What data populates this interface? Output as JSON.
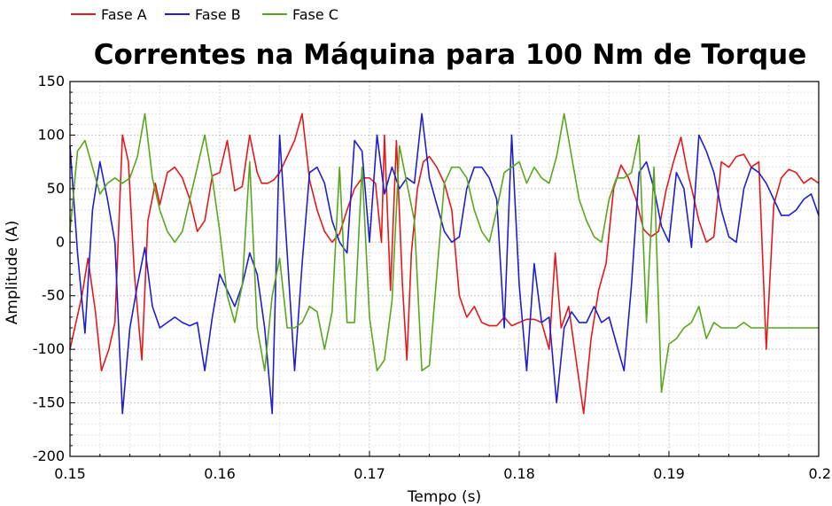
{
  "chart_data": {
    "type": "line",
    "title": "Correntes na Máquina para 100 Nm de Torque",
    "xlabel": "Tempo (s)",
    "ylabel": "Amplitude (A)",
    "xlim": [
      0.15,
      0.2
    ],
    "ylim": [
      -200,
      150
    ],
    "xticks": [
      0.15,
      0.16,
      0.17,
      0.18,
      0.19,
      0.2
    ],
    "xtick_labels": [
      "0.15",
      "0.16",
      "0.17",
      "0.18",
      "0.19",
      "0.2"
    ],
    "yticks": [
      150,
      100,
      50,
      0,
      -50,
      -100,
      -150,
      -200
    ],
    "ytick_labels": [
      "150",
      "100",
      "50",
      "0",
      "-50",
      "-100",
      "-150",
      "-200"
    ],
    "grid": true,
    "legend_position": "top-left",
    "series": [
      {
        "name": "Fase A",
        "color": "#e31a1c",
        "x": [
          0.15,
          0.1508,
          0.1512,
          0.1517,
          0.1521,
          0.1526,
          0.153,
          0.1535,
          0.1539,
          0.1543,
          0.1548,
          0.1552,
          0.1557,
          0.156,
          0.1565,
          0.157,
          0.1575,
          0.158,
          0.1585,
          0.159,
          0.1595,
          0.16,
          0.1605,
          0.161,
          0.1615,
          0.162,
          0.1625,
          0.1628,
          0.1632,
          0.1636,
          0.164,
          0.1645,
          0.165,
          0.1655,
          0.166,
          0.1665,
          0.167,
          0.1675,
          0.168,
          0.1685,
          0.169,
          0.1695,
          0.17,
          0.1704,
          0.1708,
          0.171,
          0.1714,
          0.1718,
          0.1722,
          0.1725,
          0.1728,
          0.1732,
          0.1736,
          0.174,
          0.1745,
          0.175,
          0.1755,
          0.176,
          0.1765,
          0.177,
          0.1775,
          0.178,
          0.1785,
          0.179,
          0.1795,
          0.18,
          0.1805,
          0.181,
          0.1815,
          0.182,
          0.1824,
          0.1828,
          0.1833,
          0.1838,
          0.1843,
          0.1848,
          0.1853,
          0.1858,
          0.1863,
          0.1868,
          0.1873,
          0.1878,
          0.1883,
          0.1888,
          0.1893,
          0.1898,
          0.1903,
          0.1908,
          0.1912,
          0.1916,
          0.192,
          0.1925,
          0.193,
          0.1935,
          0.194,
          0.1945,
          0.195,
          0.1955,
          0.196,
          0.1965,
          0.197,
          0.1975,
          0.198,
          0.1985,
          0.199,
          0.1995,
          0.2
        ],
        "values": [
          -100,
          -50,
          -15,
          -65,
          -120,
          -100,
          -75,
          100,
          75,
          -30,
          -110,
          20,
          55,
          35,
          65,
          70,
          60,
          40,
          10,
          20,
          62,
          65,
          95,
          48,
          52,
          100,
          65,
          55,
          55,
          58,
          65,
          80,
          95,
          120,
          58,
          30,
          10,
          0,
          8,
          30,
          50,
          60,
          60,
          55,
          0,
          100,
          -45,
          95,
          -40,
          -110,
          -10,
          50,
          75,
          80,
          70,
          55,
          30,
          -50,
          -70,
          -60,
          -75,
          -78,
          -78,
          -70,
          -78,
          -75,
          -72,
          -72,
          -75,
          -100,
          -10,
          -80,
          -60,
          -110,
          -160,
          -90,
          -45,
          -20,
          50,
          72,
          60,
          40,
          12,
          5,
          10,
          48,
          75,
          98,
          68,
          45,
          20,
          0,
          5,
          75,
          70,
          80,
          82,
          70,
          75,
          -100,
          35,
          60,
          68,
          65,
          55,
          60,
          55
        ]
      },
      {
        "name": "Fase B",
        "color": "#1f1fd0",
        "x": [
          0.15,
          0.1505,
          0.151,
          0.1515,
          0.152,
          0.1525,
          0.153,
          0.1535,
          0.154,
          0.1545,
          0.155,
          0.1555,
          0.156,
          0.1565,
          0.157,
          0.1575,
          0.158,
          0.1585,
          0.159,
          0.1595,
          0.16,
          0.1605,
          0.161,
          0.1615,
          0.162,
          0.1625,
          0.163,
          0.1635,
          0.164,
          0.1645,
          0.165,
          0.1655,
          0.166,
          0.1665,
          0.167,
          0.1675,
          0.168,
          0.1685,
          0.169,
          0.1695,
          0.17,
          0.1705,
          0.171,
          0.1715,
          0.172,
          0.1725,
          0.173,
          0.1735,
          0.174,
          0.1745,
          0.175,
          0.1755,
          0.176,
          0.1765,
          0.177,
          0.1775,
          0.178,
          0.1785,
          0.179,
          0.1795,
          0.18,
          0.1805,
          0.181,
          0.1815,
          0.182,
          0.1825,
          0.183,
          0.1835,
          0.184,
          0.1845,
          0.185,
          0.1855,
          0.186,
          0.1865,
          0.187,
          0.1875,
          0.188,
          0.1885,
          0.189,
          0.1895,
          0.19,
          0.1905,
          0.191,
          0.1915,
          0.192,
          0.1925,
          0.193,
          0.1935,
          0.194,
          0.1945,
          0.195,
          0.1955,
          0.196,
          0.1965,
          0.197,
          0.1975,
          0.198,
          0.1985,
          0.199,
          0.1995,
          0.2
        ],
        "values": [
          90,
          -10,
          -85,
          30,
          75,
          40,
          0,
          -160,
          -80,
          -40,
          -5,
          -60,
          -80,
          -75,
          -70,
          -75,
          -78,
          -75,
          -120,
          -70,
          -30,
          -45,
          -60,
          -40,
          -10,
          -30,
          -80,
          -160,
          100,
          -10,
          -120,
          -20,
          65,
          70,
          55,
          20,
          0,
          -10,
          95,
          85,
          0,
          100,
          45,
          70,
          50,
          60,
          55,
          120,
          60,
          35,
          10,
          0,
          5,
          50,
          70,
          70,
          60,
          40,
          -80,
          100,
          -40,
          -120,
          -20,
          -75,
          -70,
          -150,
          -80,
          -65,
          -75,
          -75,
          -60,
          -75,
          -70,
          -95,
          -120,
          -40,
          65,
          75,
          50,
          15,
          0,
          65,
          50,
          -5,
          100,
          85,
          65,
          30,
          5,
          0,
          50,
          70,
          65,
          55,
          40,
          25,
          25,
          30,
          40,
          45,
          25
        ]
      },
      {
        "name": "Fase C",
        "color": "#5aa71f",
        "x": [
          0.15,
          0.1505,
          0.151,
          0.1515,
          0.152,
          0.1525,
          0.153,
          0.1535,
          0.154,
          0.1545,
          0.155,
          0.1555,
          0.156,
          0.1565,
          0.157,
          0.1575,
          0.158,
          0.1585,
          0.159,
          0.1595,
          0.16,
          0.1605,
          0.161,
          0.1615,
          0.162,
          0.1625,
          0.163,
          0.1635,
          0.164,
          0.1645,
          0.165,
          0.1655,
          0.166,
          0.1665,
          0.167,
          0.1675,
          0.168,
          0.1685,
          0.169,
          0.1695,
          0.17,
          0.1705,
          0.171,
          0.1715,
          0.172,
          0.1725,
          0.173,
          0.1735,
          0.174,
          0.1745,
          0.175,
          0.1755,
          0.176,
          0.1765,
          0.177,
          0.1775,
          0.178,
          0.1785,
          0.179,
          0.1795,
          0.18,
          0.1805,
          0.181,
          0.1815,
          0.182,
          0.1825,
          0.183,
          0.1835,
          0.184,
          0.1845,
          0.185,
          0.1855,
          0.186,
          0.1865,
          0.187,
          0.1875,
          0.188,
          0.1885,
          0.189,
          0.1895,
          0.19,
          0.1905,
          0.191,
          0.1915,
          0.192,
          0.1925,
          0.193,
          0.1935,
          0.194,
          0.1945,
          0.195,
          0.1955,
          0.196,
          0.1965,
          0.197,
          0.1975,
          0.198,
          0.1985,
          0.199,
          0.1995,
          0.2
        ],
        "values": [
          10,
          85,
          95,
          70,
          45,
          55,
          60,
          55,
          60,
          80,
          120,
          60,
          30,
          10,
          0,
          10,
          40,
          70,
          100,
          60,
          10,
          -50,
          -75,
          -40,
          75,
          -80,
          -120,
          -50,
          -15,
          -80,
          -80,
          -75,
          -60,
          -65,
          -100,
          -65,
          70,
          -75,
          -75,
          70,
          -70,
          -120,
          -110,
          -55,
          90,
          55,
          20,
          -120,
          -115,
          -30,
          55,
          70,
          70,
          60,
          30,
          10,
          0,
          30,
          65,
          70,
          75,
          55,
          70,
          60,
          55,
          80,
          120,
          80,
          40,
          20,
          5,
          0,
          40,
          60,
          60,
          65,
          100,
          -75,
          70,
          -140,
          -95,
          -90,
          -80,
          -75,
          -60,
          -90,
          -75,
          -80,
          -80,
          -80,
          -75,
          -80,
          -80,
          -80,
          -80,
          -80,
          -80,
          -80,
          -80,
          -80,
          -80
        ]
      }
    ]
  }
}
